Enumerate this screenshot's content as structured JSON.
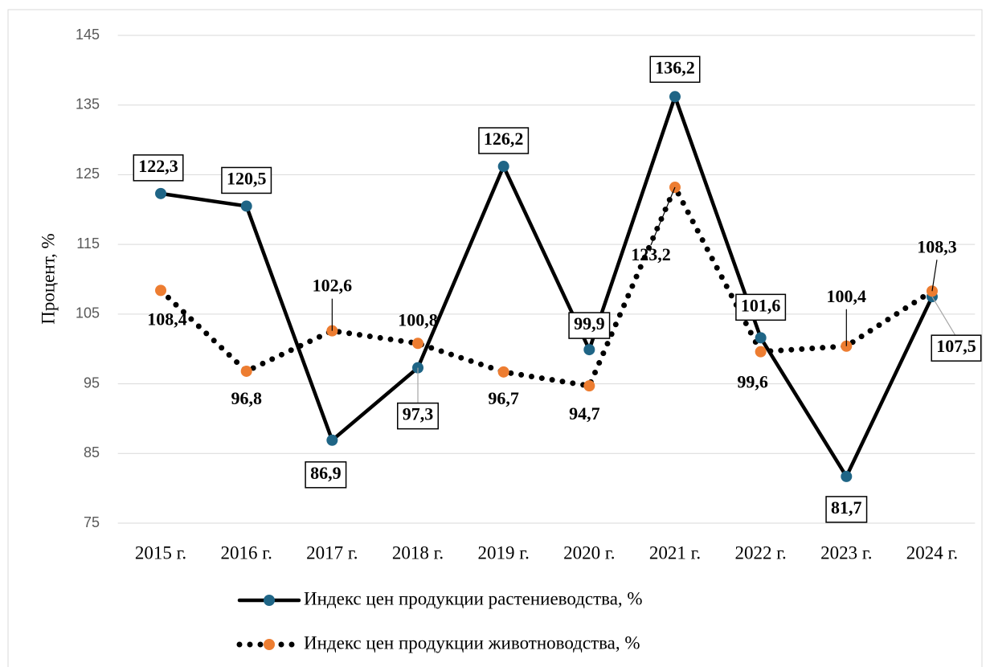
{
  "chart_data": {
    "type": "line",
    "y_label": "Процент, %",
    "categories": [
      "2015 г.",
      "2016 г.",
      "2017 г.",
      "2018 г.",
      "2019 г.",
      "2020 г.",
      "2021 г.",
      "2022 г.",
      "2023 г.",
      "2024 г."
    ],
    "series": [
      {
        "name": "Индекс цен продукции растениеводства, %",
        "color": "#000000",
        "marker_color": "#1f6586",
        "line_style": "solid",
        "label_box": true,
        "values": [
          122.3,
          120.5,
          86.9,
          97.3,
          126.2,
          99.9,
          136.2,
          101.6,
          81.7,
          107.5
        ],
        "value_labels": [
          "122,3",
          "120,5",
          "86,9",
          "97,3",
          "126,2",
          "99,9",
          "136,2",
          "101,6",
          "81,7",
          "107,5"
        ]
      },
      {
        "name": "Индекс цен продукции животноводства, %",
        "color": "#000000",
        "marker_color": "#ed7d31",
        "line_style": "dotted",
        "label_box": false,
        "values": [
          108.4,
          96.8,
          102.6,
          100.8,
          96.7,
          94.7,
          123.2,
          99.6,
          100.4,
          108.3
        ],
        "value_labels": [
          "108,4",
          "96,8",
          "102,6",
          "100,8",
          "96,7",
          "94,7",
          "123,2",
          "99,6",
          "100,4",
          "108,3"
        ]
      }
    ],
    "ylim": [
      75,
      145
    ],
    "yticks": [
      75,
      85,
      95,
      105,
      115,
      125,
      135,
      145
    ],
    "grid": true
  }
}
